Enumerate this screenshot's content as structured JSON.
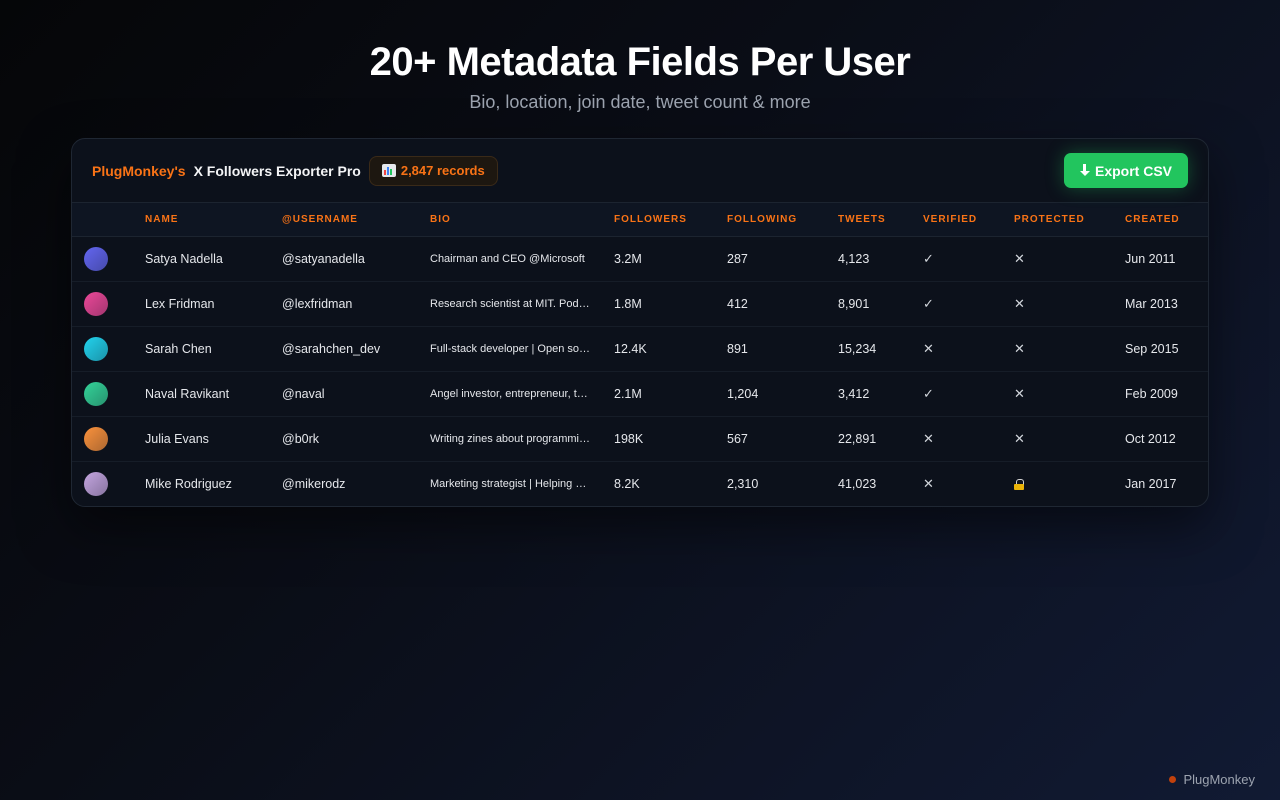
{
  "hero": {
    "title": "20+ Metadata Fields Per User",
    "subtitle": "Bio, location, join date, tweet count & more"
  },
  "header": {
    "brand": "PlugMonkey's",
    "app_name": "X Followers Exporter Pro",
    "records_badge": "2,847 records",
    "records_icon": "bar-chart-icon",
    "export_label": "Export CSV",
    "export_icon": "download-arrow-icon"
  },
  "table": {
    "columns": [
      "",
      "Name",
      "@Username",
      "Bio",
      "Followers",
      "Following",
      "Tweets",
      "Verified",
      "Protected",
      "Created"
    ],
    "rows": [
      {
        "avatar_color": "#6366f1",
        "name": "Satya Nadella",
        "username": "@satyanadella",
        "bio": "Chairman and CEO @Microsoft",
        "followers": "3.2M",
        "following": "287",
        "tweets": "4,123",
        "verified": "✓",
        "protected": "✕",
        "created": "Jun 2011"
      },
      {
        "avatar_color": "#ec4899",
        "name": "Lex Fridman",
        "username": "@lexfridman",
        "bio": "Research scientist at MIT. Podcast host",
        "followers": "1.8M",
        "following": "412",
        "tweets": "8,901",
        "verified": "✓",
        "protected": "✕",
        "created": "Mar 2013"
      },
      {
        "avatar_color": "#22d3ee",
        "name": "Sarah Chen",
        "username": "@sarahchen_dev",
        "bio": "Full-stack developer | Open source",
        "followers": "12.4K",
        "following": "891",
        "tweets": "15,234",
        "verified": "✕",
        "protected": "✕",
        "created": "Sep 2015"
      },
      {
        "avatar_color": "#34d399",
        "name": "Naval Ravikant",
        "username": "@naval",
        "bio": "Angel investor, entrepreneur, thinker",
        "followers": "2.1M",
        "following": "1,204",
        "tweets": "3,412",
        "verified": "✓",
        "protected": "✕",
        "created": "Feb 2009"
      },
      {
        "avatar_color": "#fb923c",
        "name": "Julia Evans",
        "username": "@b0rk",
        "bio": "Writing zines about programming",
        "followers": "198K",
        "following": "567",
        "tweets": "22,891",
        "verified": "✕",
        "protected": "✕",
        "created": "Oct 2012"
      },
      {
        "avatar_color": "#c4a5e0",
        "name": "Mike Rodriguez",
        "username": "@mikerodz",
        "bio": "Marketing strategist | Helping brands grow",
        "followers": "8.2K",
        "following": "2,310",
        "tweets": "41,023",
        "verified": "✕",
        "protected": "lock-icon",
        "created": "Jan 2017"
      }
    ]
  },
  "footer": {
    "brand": "PlugMonkey"
  }
}
